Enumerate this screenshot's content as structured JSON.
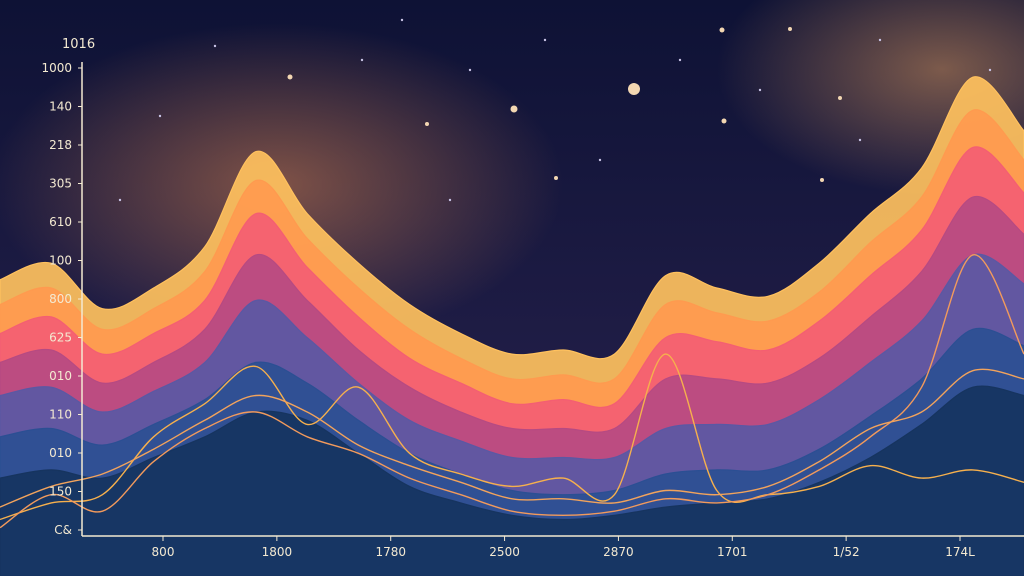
{
  "chart_data": {
    "type": "area",
    "title": "",
    "top_label": "1016",
    "xlabel": "",
    "ylabel": "",
    "x_ticks": [
      "800",
      "1800",
      "1780",
      "2500",
      "2870",
      "1701",
      "1/52",
      "174L"
    ],
    "y_ticks": [
      "1000",
      "140",
      "218",
      "305",
      "610",
      "100",
      "800",
      "625",
      "010",
      "110",
      "010",
      "150",
      "C&"
    ],
    "grid": false,
    "legend": "none",
    "x": [
      0,
      1,
      2,
      3,
      4,
      5,
      6,
      7,
      8,
      9,
      10,
      11,
      12,
      13,
      14,
      15,
      16,
      17,
      18,
      19,
      20
    ],
    "series": [
      {
        "color": "#ffc15e",
        "values": [
          62,
          66,
          55,
          60,
          70,
          93,
          78,
          66,
          56,
          49,
          44,
          45,
          44,
          63,
          60,
          58,
          66,
          78,
          89,
          111,
          98
        ]
      },
      {
        "color": "#ff9a4f",
        "values": [
          56,
          60,
          50,
          55,
          64,
          86,
          72,
          60,
          50,
          43,
          38,
          39,
          38,
          56,
          54,
          52,
          59,
          71,
          82,
          103,
          91
        ]
      },
      {
        "color": "#f45e73",
        "values": [
          49,
          53,
          44,
          49,
          57,
          78,
          65,
          53,
          43,
          37,
          32,
          33,
          32,
          48,
          47,
          45,
          52,
          63,
          74,
          94,
          83
        ]
      },
      {
        "color": "#b64a82",
        "values": [
          42,
          45,
          37,
          42,
          50,
          68,
          57,
          45,
          36,
          30,
          26,
          26,
          26,
          38,
          38,
          37,
          43,
          53,
          64,
          82,
          73
        ]
      },
      {
        "color": "#5a58a4",
        "values": [
          34,
          36,
          30,
          35,
          42,
          57,
          48,
          37,
          28,
          23,
          19,
          19,
          19,
          26,
          27,
          27,
          33,
          42,
          52,
          68,
          61
        ]
      },
      {
        "color": "#2b4f93",
        "values": [
          24,
          26,
          22,
          27,
          33,
          42,
          37,
          28,
          20,
          15,
          11,
          10,
          11,
          15,
          16,
          16,
          21,
          29,
          38,
          50,
          46
        ]
      },
      {
        "color": "#16345f",
        "values": [
          14,
          16,
          14,
          19,
          24,
          30,
          28,
          20,
          12,
          8,
          5,
          4,
          5,
          7,
          8,
          9,
          13,
          19,
          27,
          36,
          34
        ]
      }
    ],
    "lines": [
      {
        "color": "#f6b04d",
        "values": [
          4,
          8,
          10,
          24,
          32,
          41,
          27,
          36,
          20,
          15,
          12,
          14,
          10,
          44,
          11,
          10,
          12,
          17,
          14,
          16,
          13
        ]
      },
      {
        "color": "#f29a5c",
        "values": [
          2,
          10,
          6,
          18,
          26,
          30,
          24,
          20,
          14,
          10,
          6,
          5,
          6,
          9,
          8,
          10,
          16,
          24,
          36,
          68,
          44
        ]
      },
      {
        "color": "#f2a35c",
        "values": [
          7,
          12,
          15,
          21,
          28,
          34,
          30,
          22,
          17,
          13,
          9,
          9,
          8,
          11,
          10,
          12,
          18,
          26,
          30,
          40,
          38
        ]
      }
    ],
    "ylim": [
      0,
      120
    ]
  }
}
